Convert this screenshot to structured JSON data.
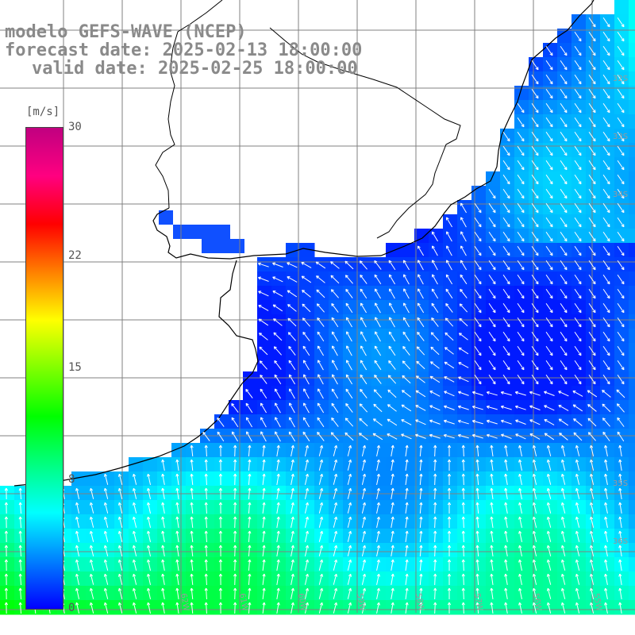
{
  "header": {
    "title": "modelo GEFS-WAVE (NCEP)",
    "forecast": "forecast date: 2025-02-13 18:00:00",
    "valid": "valid date: 2025-02-25 18:00:00"
  },
  "colorbar": {
    "unit": "[m/s]",
    "ticks": [
      "30",
      "22",
      "15",
      "8",
      "0"
    ],
    "tick_values": [
      30,
      22,
      15,
      8,
      0
    ],
    "colors": [
      "#0000ff",
      "#0080ff",
      "#00ffff",
      "#00ff80",
      "#00ff00",
      "#80ff00",
      "#ffff00",
      "#ff8000",
      "#ff0000",
      "#ff0080",
      "#c00080"
    ]
  },
  "map": {
    "variable": "wind speed",
    "land_color": "#ffffff",
    "grid_color": "#808080",
    "coast_color": "#000000",
    "arrow_color": "#ffffff",
    "lat_labels": [
      "32S",
      "33S",
      "34S",
      "35S",
      "36S"
    ],
    "lon_labels": [
      "55W",
      "56W",
      "57W",
      "58W",
      "59W",
      "60W",
      "61W",
      "62W"
    ]
  }
}
